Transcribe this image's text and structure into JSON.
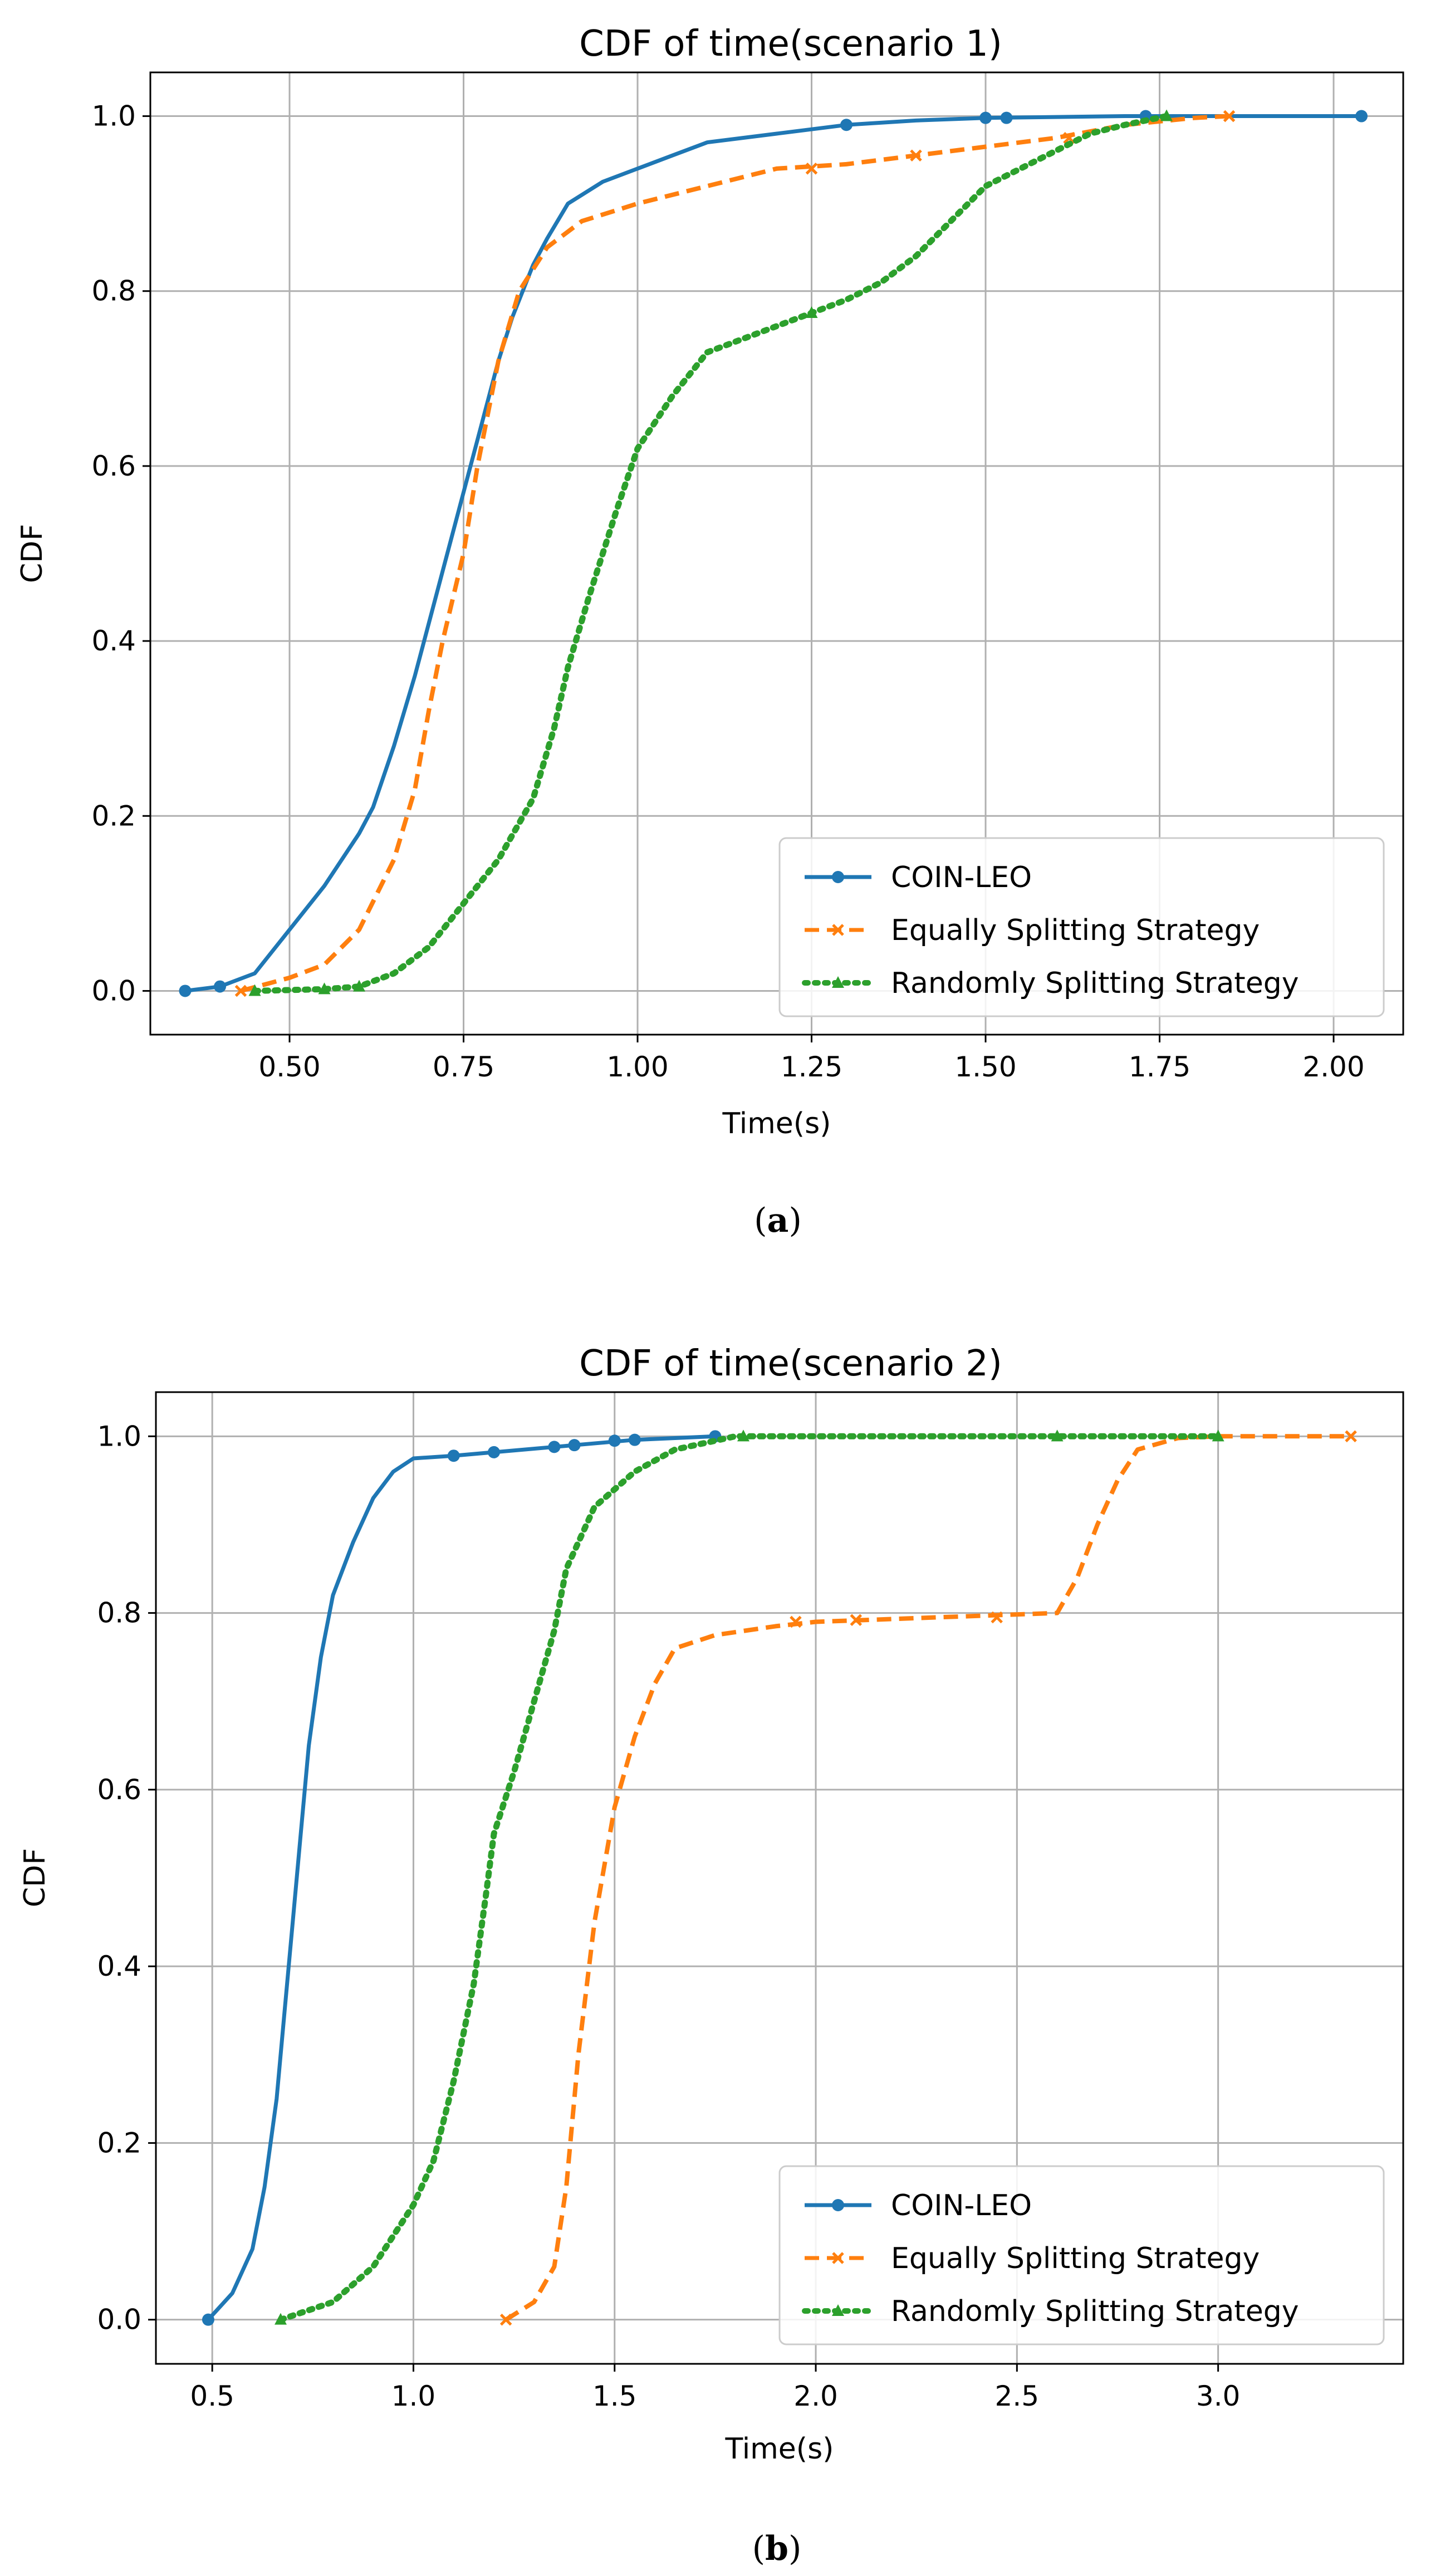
{
  "chart_data": [
    {
      "type": "line",
      "title": "CDF of time(scenario 1)",
      "xlabel": "Time(s)",
      "ylabel": "CDF",
      "xlim": [
        0.3,
        2.1
      ],
      "ylim": [
        -0.05,
        1.05
      ],
      "xticks": [
        "0.50",
        "0.75",
        "1.00",
        "1.25",
        "1.50",
        "1.75",
        "2.00"
      ],
      "xtick_values": [
        0.5,
        0.75,
        1.0,
        1.25,
        1.5,
        1.75,
        2.0
      ],
      "yticks": [
        "0.0",
        "0.2",
        "0.4",
        "0.6",
        "0.8",
        "1.0"
      ],
      "ytick_values": [
        0,
        0.2,
        0.4,
        0.6,
        0.8,
        1.0
      ],
      "grid": true,
      "legend_position": "bottom-right",
      "caption": "a",
      "series": [
        {
          "name": "COIN-LEO",
          "color": "#1f77b4",
          "style": "solid",
          "marker": "circle",
          "points": [
            [
              0.35,
              0.0
            ],
            [
              0.4,
              0.005
            ],
            [
              0.45,
              0.02
            ],
            [
              0.5,
              0.07
            ],
            [
              0.55,
              0.12
            ],
            [
              0.6,
              0.18
            ],
            [
              0.62,
              0.21
            ],
            [
              0.65,
              0.28
            ],
            [
              0.68,
              0.36
            ],
            [
              0.7,
              0.42
            ],
            [
              0.72,
              0.48
            ],
            [
              0.75,
              0.57
            ],
            [
              0.78,
              0.66
            ],
            [
              0.8,
              0.72
            ],
            [
              0.82,
              0.77
            ],
            [
              0.85,
              0.83
            ],
            [
              0.87,
              0.86
            ],
            [
              0.9,
              0.9
            ],
            [
              0.95,
              0.925
            ],
            [
              1.0,
              0.94
            ],
            [
              1.05,
              0.955
            ],
            [
              1.1,
              0.97
            ],
            [
              1.2,
              0.98
            ],
            [
              1.3,
              0.99
            ],
            [
              1.4,
              0.995
            ],
            [
              1.5,
              0.998
            ],
            [
              1.7,
              1.0
            ],
            [
              2.04,
              1.0
            ]
          ],
          "marker_points": [
            [
              0.35,
              0.0
            ],
            [
              0.4,
              0.005
            ],
            [
              1.3,
              0.99
            ],
            [
              1.5,
              0.998
            ],
            [
              1.53,
              0.998
            ],
            [
              1.73,
              1.0
            ],
            [
              2.04,
              1.0
            ]
          ]
        },
        {
          "name": "Equally Splitting Strategy",
          "color": "#ff7f0e",
          "style": "dashed",
          "marker": "x",
          "points": [
            [
              0.43,
              0.0
            ],
            [
              0.5,
              0.015
            ],
            [
              0.55,
              0.03
            ],
            [
              0.6,
              0.07
            ],
            [
              0.65,
              0.15
            ],
            [
              0.68,
              0.23
            ],
            [
              0.7,
              0.32
            ],
            [
              0.72,
              0.4
            ],
            [
              0.75,
              0.5
            ],
            [
              0.77,
              0.6
            ],
            [
              0.8,
              0.72
            ],
            [
              0.83,
              0.8
            ],
            [
              0.87,
              0.85
            ],
            [
              0.92,
              0.88
            ],
            [
              1.0,
              0.9
            ],
            [
              1.1,
              0.92
            ],
            [
              1.15,
              0.93
            ],
            [
              1.2,
              0.94
            ],
            [
              1.3,
              0.945
            ],
            [
              1.4,
              0.955
            ],
            [
              1.5,
              0.965
            ],
            [
              1.6,
              0.975
            ],
            [
              1.7,
              0.99
            ],
            [
              1.8,
              0.998
            ],
            [
              1.85,
              1.0
            ]
          ],
          "marker_points": [
            [
              0.43,
              0.0
            ],
            [
              1.25,
              0.94
            ],
            [
              1.4,
              0.955
            ],
            [
              1.62,
              0.975
            ],
            [
              1.85,
              1.0
            ]
          ]
        },
        {
          "name": "Randomly Splitting Strategy",
          "color": "#2ca02c",
          "style": "dotted",
          "marker": "triangle",
          "points": [
            [
              0.45,
              0.0
            ],
            [
              0.55,
              0.002
            ],
            [
              0.6,
              0.005
            ],
            [
              0.65,
              0.02
            ],
            [
              0.7,
              0.05
            ],
            [
              0.75,
              0.1
            ],
            [
              0.8,
              0.15
            ],
            [
              0.85,
              0.22
            ],
            [
              0.88,
              0.3
            ],
            [
              0.9,
              0.37
            ],
            [
              0.93,
              0.45
            ],
            [
              0.95,
              0.5
            ],
            [
              0.97,
              0.55
            ],
            [
              1.0,
              0.62
            ],
            [
              1.05,
              0.68
            ],
            [
              1.1,
              0.73
            ],
            [
              1.2,
              0.76
            ],
            [
              1.3,
              0.79
            ],
            [
              1.35,
              0.81
            ],
            [
              1.4,
              0.84
            ],
            [
              1.45,
              0.88
            ],
            [
              1.5,
              0.92
            ],
            [
              1.55,
              0.94
            ],
            [
              1.6,
              0.96
            ],
            [
              1.65,
              0.98
            ],
            [
              1.7,
              0.99
            ],
            [
              1.76,
              1.0
            ]
          ],
          "marker_points": [
            [
              0.45,
              0.0
            ],
            [
              0.55,
              0.002
            ],
            [
              0.6,
              0.005
            ],
            [
              1.25,
              0.775
            ],
            [
              1.76,
              1.0
            ]
          ]
        }
      ]
    },
    {
      "type": "line",
      "title": "CDF of time(scenario 2)",
      "xlabel": "Time(s)",
      "ylabel": "CDF",
      "xlim": [
        0.36,
        3.46
      ],
      "ylim": [
        -0.05,
        1.05
      ],
      "xticks": [
        "0.5",
        "1.0",
        "1.5",
        "2.0",
        "2.5",
        "3.0"
      ],
      "xtick_values": [
        0.5,
        1.0,
        1.5,
        2.0,
        2.5,
        3.0
      ],
      "yticks": [
        "0.0",
        "0.2",
        "0.4",
        "0.6",
        "0.8",
        "1.0"
      ],
      "ytick_values": [
        0,
        0.2,
        0.4,
        0.6,
        0.8,
        1.0
      ],
      "grid": true,
      "legend_position": "bottom-right",
      "caption": "b",
      "series": [
        {
          "name": "COIN-LEO",
          "color": "#1f77b4",
          "style": "solid",
          "marker": "circle",
          "points": [
            [
              0.49,
              0.0
            ],
            [
              0.55,
              0.03
            ],
            [
              0.6,
              0.08
            ],
            [
              0.63,
              0.15
            ],
            [
              0.66,
              0.25
            ],
            [
              0.68,
              0.35
            ],
            [
              0.7,
              0.45
            ],
            [
              0.72,
              0.55
            ],
            [
              0.74,
              0.65
            ],
            [
              0.77,
              0.75
            ],
            [
              0.8,
              0.82
            ],
            [
              0.85,
              0.88
            ],
            [
              0.9,
              0.93
            ],
            [
              0.95,
              0.96
            ],
            [
              1.0,
              0.975
            ],
            [
              1.1,
              0.978
            ],
            [
              1.2,
              0.982
            ],
            [
              1.4,
              0.99
            ],
            [
              1.55,
              0.996
            ],
            [
              1.75,
              1.0
            ]
          ],
          "marker_points": [
            [
              0.49,
              0.0
            ],
            [
              1.1,
              0.978
            ],
            [
              1.2,
              0.982
            ],
            [
              1.35,
              0.988
            ],
            [
              1.4,
              0.99
            ],
            [
              1.5,
              0.995
            ],
            [
              1.55,
              0.996
            ],
            [
              1.75,
              1.0
            ]
          ]
        },
        {
          "name": "Equally Splitting Strategy",
          "color": "#ff7f0e",
          "style": "dashed",
          "marker": "x",
          "points": [
            [
              1.23,
              0.0
            ],
            [
              1.3,
              0.02
            ],
            [
              1.35,
              0.06
            ],
            [
              1.38,
              0.15
            ],
            [
              1.41,
              0.3
            ],
            [
              1.45,
              0.45
            ],
            [
              1.5,
              0.58
            ],
            [
              1.55,
              0.66
            ],
            [
              1.6,
              0.72
            ],
            [
              1.65,
              0.76
            ],
            [
              1.75,
              0.775
            ],
            [
              1.9,
              0.785
            ],
            [
              2.0,
              0.79
            ],
            [
              2.3,
              0.795
            ],
            [
              2.6,
              0.8
            ],
            [
              2.65,
              0.84
            ],
            [
              2.7,
              0.9
            ],
            [
              2.75,
              0.95
            ],
            [
              2.8,
              0.985
            ],
            [
              2.9,
              0.998
            ],
            [
              3.0,
              1.0
            ],
            [
              3.33,
              1.0
            ]
          ],
          "marker_points": [
            [
              1.23,
              0.0
            ],
            [
              1.95,
              0.79
            ],
            [
              2.1,
              0.792
            ],
            [
              2.45,
              0.795
            ],
            [
              3.33,
              1.0
            ]
          ]
        },
        {
          "name": "Randomly Splitting Strategy",
          "color": "#2ca02c",
          "style": "dotted",
          "marker": "triangle",
          "points": [
            [
              0.67,
              0.0
            ],
            [
              0.8,
              0.02
            ],
            [
              0.9,
              0.06
            ],
            [
              1.0,
              0.13
            ],
            [
              1.05,
              0.18
            ],
            [
              1.1,
              0.27
            ],
            [
              1.15,
              0.38
            ],
            [
              1.18,
              0.48
            ],
            [
              1.2,
              0.55
            ],
            [
              1.25,
              0.62
            ],
            [
              1.3,
              0.7
            ],
            [
              1.35,
              0.78
            ],
            [
              1.38,
              0.85
            ],
            [
              1.45,
              0.92
            ],
            [
              1.55,
              0.96
            ],
            [
              1.65,
              0.985
            ],
            [
              1.75,
              0.995
            ],
            [
              1.8,
              1.0
            ],
            [
              2.6,
              1.0
            ],
            [
              3.0,
              1.0
            ]
          ],
          "marker_points": [
            [
              0.67,
              0.0
            ],
            [
              1.82,
              1.0
            ],
            [
              2.6,
              1.0
            ],
            [
              3.0,
              1.0
            ]
          ]
        }
      ]
    }
  ]
}
